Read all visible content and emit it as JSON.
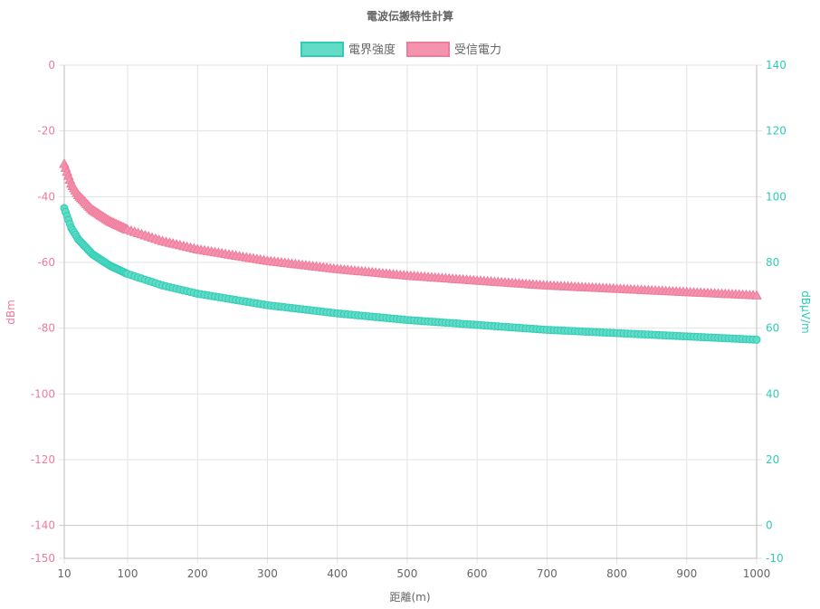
{
  "chart_data": {
    "type": "scatter",
    "title": "電波伝搬特性計算",
    "xlabel": "距離(m)",
    "ylabel_left": "dBm",
    "ylabel_right": "dBμV/m",
    "xlim": [
      10,
      1000
    ],
    "x_ticks": [
      10,
      100,
      200,
      300,
      400,
      500,
      600,
      700,
      800,
      900,
      1000
    ],
    "ylim_left": [
      -150,
      0
    ],
    "y_ticks_left": [
      0,
      -20,
      -40,
      -60,
      -80,
      -100,
      -120,
      -140,
      -150
    ],
    "ylim_right": [
      -10,
      140
    ],
    "y_ticks_right": [
      140,
      120,
      100,
      80,
      60,
      40,
      20,
      0,
      -10
    ],
    "grid": true,
    "legend_position": "top",
    "series": [
      {
        "name": "電界強度",
        "axis": "right",
        "marker": "circle",
        "color": "#2ecdb5",
        "fill": "#63dbc7",
        "x": [
          10,
          20,
          30,
          50,
          75,
          100,
          150,
          200,
          300,
          400,
          500,
          600,
          700,
          800,
          900,
          1000
        ],
        "values": [
          96.5,
          90.5,
          87,
          82.5,
          79,
          76.5,
          73,
          70.5,
          67,
          64.5,
          62.5,
          61,
          59.5,
          58.5,
          57.5,
          56.5
        ]
      },
      {
        "name": "受信電力",
        "axis": "left",
        "marker": "triangle",
        "color": "#f07b9b",
        "fill": "#f493ae",
        "x": [
          10,
          20,
          30,
          50,
          75,
          100,
          150,
          200,
          300,
          400,
          500,
          600,
          700,
          800,
          900,
          1000
        ],
        "values": [
          -30,
          -36,
          -39.5,
          -44,
          -47.5,
          -50,
          -53.5,
          -56,
          -59.5,
          -62,
          -64,
          -65.5,
          -67,
          -68,
          -69,
          -70
        ]
      }
    ]
  }
}
